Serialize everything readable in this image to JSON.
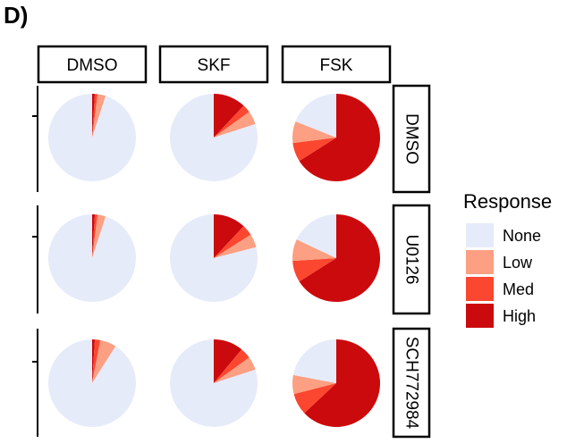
{
  "figure": {
    "panel_label": "D)"
  },
  "chart_data": {
    "type": "pie",
    "grid": "faceted",
    "column_facets": [
      "DMSO",
      "SKF",
      "FSK"
    ],
    "row_facets": [
      "DMSO",
      "U0126",
      "SCH772984"
    ],
    "categories": [
      "None",
      "Low",
      "Med",
      "High"
    ],
    "colors": {
      "None": "#e6ebfa",
      "Low": "#fc9f82",
      "Med": "#fb4630",
      "High": "#cb0a0d"
    },
    "legend": {
      "title": "Response",
      "position": "right"
    },
    "facets": [
      {
        "row": "DMSO",
        "col": "DMSO",
        "values": {
          "None": 0.95,
          "Low": 0.03,
          "Med": 0.01,
          "High": 0.01
        }
      },
      {
        "row": "DMSO",
        "col": "SKF",
        "values": {
          "None": 0.8,
          "Low": 0.05,
          "Med": 0.03,
          "High": 0.12
        }
      },
      {
        "row": "DMSO",
        "col": "FSK",
        "values": {
          "None": 0.19,
          "Low": 0.08,
          "Med": 0.07,
          "High": 0.66
        }
      },
      {
        "row": "U0126",
        "col": "DMSO",
        "values": {
          "None": 0.95,
          "Low": 0.03,
          "Med": 0.01,
          "High": 0.01
        }
      },
      {
        "row": "U0126",
        "col": "SKF",
        "values": {
          "None": 0.79,
          "Low": 0.05,
          "Med": 0.04,
          "High": 0.12
        }
      },
      {
        "row": "U0126",
        "col": "FSK",
        "values": {
          "None": 0.18,
          "Low": 0.08,
          "Med": 0.08,
          "High": 0.66
        }
      },
      {
        "row": "SCH772984",
        "col": "DMSO",
        "values": {
          "None": 0.91,
          "Low": 0.06,
          "Med": 0.02,
          "High": 0.01
        }
      },
      {
        "row": "SCH772984",
        "col": "SKF",
        "values": {
          "None": 0.8,
          "Low": 0.05,
          "Med": 0.04,
          "High": 0.11
        }
      },
      {
        "row": "SCH772984",
        "col": "FSK",
        "values": {
          "None": 0.22,
          "Low": 0.07,
          "Med": 0.08,
          "High": 0.63
        }
      }
    ]
  }
}
